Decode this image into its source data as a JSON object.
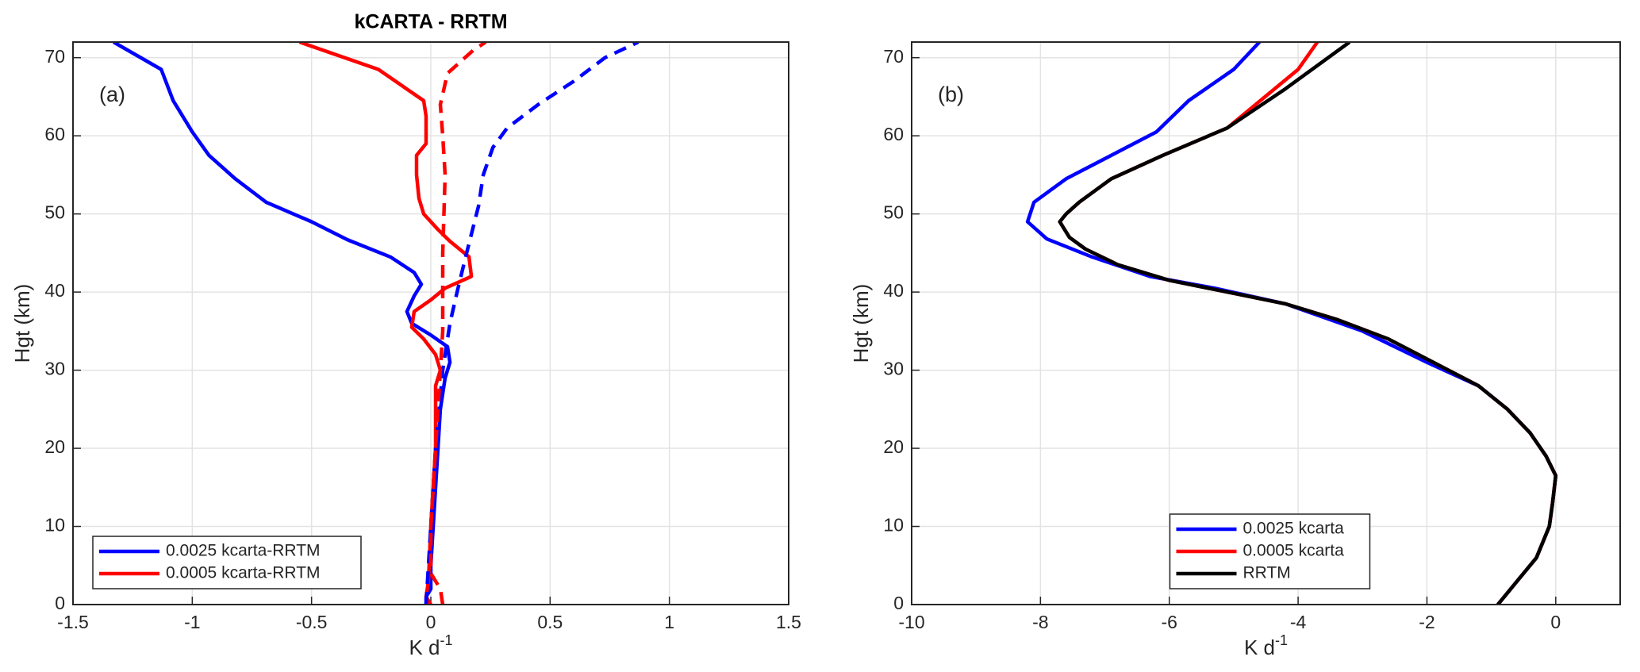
{
  "chart_data": [
    {
      "type": "line",
      "title": "kCARTA - RRTM",
      "panel_label": "(a)",
      "xlabel": "K d",
      "xlabel_sup": "-1",
      "ylabel": "Hgt (km)",
      "xlim": [
        -1.5,
        1.5
      ],
      "ylim": [
        0,
        72
      ],
      "xticks": [
        -1.5,
        -1,
        -0.5,
        0,
        0.5,
        1,
        1.5
      ],
      "yticks": [
        0,
        10,
        20,
        30,
        40,
        50,
        60,
        70
      ],
      "grid": true,
      "legend": "lower left",
      "series": [
        {
          "name": "0.0025 kcarta-RRTM",
          "color": "#0000ff",
          "dashed": false,
          "x": [
            -0.02,
            -0.02,
            0.0,
            0.0,
            0.01,
            0.02,
            0.03,
            0.04,
            0.06,
            0.08,
            0.07,
            0.0,
            -0.08,
            -0.1,
            -0.07,
            -0.04,
            -0.07,
            -0.17,
            -0.35,
            -0.5,
            -0.69,
            -0.82,
            -0.93,
            -1.0,
            -1.08,
            -1.13,
            -1.33
          ],
          "y": [
            0,
            1,
            2,
            5,
            10,
            15,
            20,
            25,
            29,
            31,
            33,
            34.5,
            36,
            37.5,
            39.5,
            41,
            42.5,
            44.5,
            46.7,
            49,
            51.5,
            54.5,
            57.5,
            60.5,
            64.5,
            68.5,
            72
          ]
        },
        {
          "name": "0.0005 kcarta-RRTM",
          "color": "#ff0000",
          "dashed": false,
          "x": [
            0.0,
            -0.02,
            -0.01,
            0.0,
            0.01,
            0.02,
            0.02,
            0.04,
            0.02,
            -0.03,
            -0.08,
            -0.07,
            0.0,
            0.06,
            0.17,
            0.16,
            0.08,
            0.03,
            -0.03,
            -0.05,
            -0.06,
            -0.06,
            -0.02,
            -0.02,
            -0.03,
            -0.22,
            -0.55
          ],
          "y": [
            0,
            1,
            3,
            10,
            15,
            20,
            28,
            30,
            32,
            34,
            35.5,
            37.5,
            39,
            40.5,
            42,
            44.5,
            46.5,
            48,
            50,
            52,
            55,
            57.5,
            59,
            62.5,
            64.5,
            68.5,
            72
          ]
        },
        {
          "color": "#0000ff",
          "dashed": true,
          "x": [
            -0.02,
            0.0,
            0.02,
            0.05,
            0.08,
            0.11,
            0.15,
            0.2,
            0.22,
            0.26,
            0.32,
            0.45,
            0.6,
            0.73,
            0.87
          ],
          "y": [
            0,
            10,
            20,
            30,
            36,
            40,
            45,
            51,
            55,
            58.5,
            61,
            64,
            67,
            70,
            72
          ]
        },
        {
          "color": "#ff0000",
          "dashed": true,
          "x": [
            0.05,
            0.04,
            0.0,
            0.0,
            0.02,
            0.04,
            0.05,
            0.05,
            0.06,
            0.05,
            0.04,
            0.07,
            0.18,
            0.23
          ],
          "y": [
            0,
            2,
            4,
            10,
            20,
            30,
            35,
            45,
            55,
            60,
            64,
            68,
            71,
            72
          ]
        }
      ]
    },
    {
      "type": "line",
      "panel_label": "(b)",
      "xlabel": "K d",
      "xlabel_sup": "-1",
      "ylabel": "Hgt (km)",
      "xlim": [
        -10,
        1
      ],
      "ylim": [
        0,
        72
      ],
      "xticks": [
        -10,
        -8,
        -6,
        -4,
        -2,
        0
      ],
      "yticks": [
        0,
        10,
        20,
        30,
        40,
        50,
        60,
        70
      ],
      "grid": true,
      "legend": "lower center",
      "series": [
        {
          "name": "0.0025 kcarta",
          "color": "#0000ff",
          "dashed": false,
          "x": [
            -0.9,
            -0.6,
            -0.3,
            -0.1,
            -0.05,
            0.0,
            -0.15,
            -0.4,
            -0.75,
            -1.2,
            -2.0,
            -3.0,
            -4.2,
            -5.3,
            -6.3,
            -7.2,
            -7.9,
            -8.2,
            -8.1,
            -7.6,
            -6.9,
            -6.2,
            -5.7,
            -5.0,
            -4.6
          ],
          "y": [
            0,
            3,
            6,
            10,
            13,
            16.5,
            19,
            22,
            25,
            28,
            31,
            35,
            38.5,
            40.5,
            42,
            44.5,
            46.8,
            49,
            51.5,
            54.5,
            57.5,
            60.5,
            64.5,
            68.5,
            72
          ]
        },
        {
          "name": "0.0005 kcarta",
          "color": "#ff0000",
          "dashed": false,
          "x": [
            -0.9,
            -0.6,
            -0.3,
            -0.1,
            -0.05,
            0.0,
            -0.15,
            -0.4,
            -0.75,
            -1.2,
            -1.9,
            -2.6,
            -3.4,
            -4.2,
            -5.1,
            -6.0,
            -6.8,
            -7.3,
            -7.55,
            -7.7,
            -7.6,
            -7.4,
            -6.9,
            -6.1,
            -5.1,
            -4.0,
            -3.7
          ],
          "y": [
            0,
            3,
            6,
            10,
            13,
            16.5,
            19,
            22,
            25,
            28,
            31,
            34,
            36.5,
            38.5,
            40,
            41.5,
            43.5,
            45.5,
            47,
            49,
            50,
            51.5,
            54.5,
            57.5,
            61,
            68.5,
            72
          ]
        },
        {
          "name": "RRTM",
          "color": "#000000",
          "dashed": false,
          "x": [
            -0.9,
            -0.6,
            -0.3,
            -0.1,
            -0.05,
            0.0,
            -0.15,
            -0.4,
            -0.75,
            -1.2,
            -1.9,
            -2.6,
            -3.4,
            -4.2,
            -5.1,
            -6.0,
            -6.8,
            -7.3,
            -7.55,
            -7.7,
            -7.6,
            -7.4,
            -6.9,
            -6.1,
            -5.1,
            -4.2,
            -3.2
          ],
          "y": [
            0,
            3,
            6,
            10,
            13,
            16.5,
            19,
            22,
            25,
            28,
            31,
            34,
            36.5,
            38.5,
            40,
            41.5,
            43.5,
            45.5,
            47,
            49,
            50,
            51.5,
            54.5,
            57.5,
            61,
            66,
            72
          ]
        }
      ]
    }
  ]
}
